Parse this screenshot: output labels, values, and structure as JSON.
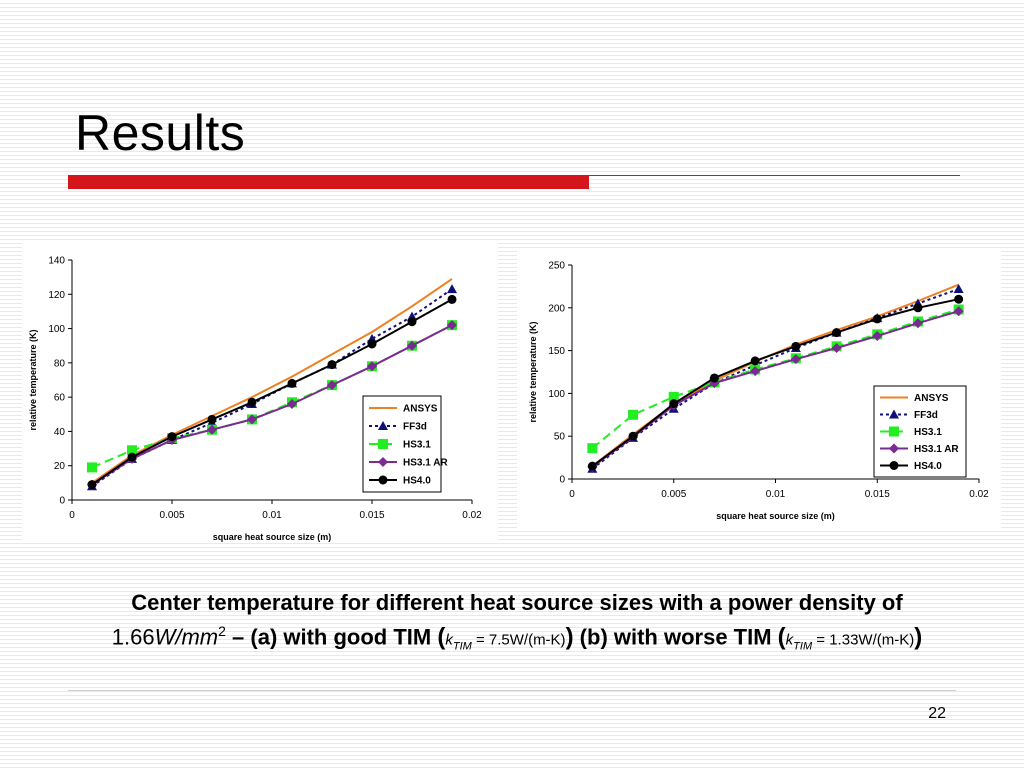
{
  "title": "Results",
  "caption": {
    "part1": "Center temperature for different heat source sizes with a power density of ",
    "density_value": "1.66",
    "density_unit": "W/mm",
    "density_exp": "2",
    "part2": " – (a) with good TIM ",
    "open_paren": "(",
    "k_symbol": "k",
    "k_sub": "TIM",
    "k_good": " = 7.5W/(m-K)",
    "close_paren": ")",
    "part3": " (b) with worse TIM ",
    "k_worse": " = 1.33W/(m-K)"
  },
  "page_number": "22",
  "colors": {
    "title_bar": "#d4151b",
    "ANSYS": "#f07f21",
    "FF3d": "#10107a",
    "HS3.1": "#22ee22",
    "HS3.1 AR": "#7a2a90",
    "HS4.0": "#000000"
  },
  "chart_data": [
    {
      "type": "line",
      "xlabel": "square heat source size (m)",
      "ylabel": "relative temperature (K)",
      "xlim": [
        0,
        0.02
      ],
      "ylim": [
        0,
        140
      ],
      "xticks": [
        "0",
        "0.005",
        "0.01",
        "0.015",
        "0.02"
      ],
      "yticks": [
        "0",
        "20",
        "40",
        "60",
        "80",
        "100",
        "120",
        "140"
      ],
      "legend": "right",
      "grid": false,
      "series": [
        {
          "name": "ANSYS",
          "style": "solid-line",
          "x": [
            0.001,
            0.003,
            0.005,
            0.007,
            0.009,
            0.011,
            0.013,
            0.015,
            0.017,
            0.019
          ],
          "y": [
            10,
            26,
            38,
            49,
            60,
            72,
            85,
            98,
            113,
            129
          ]
        },
        {
          "name": "FF3d",
          "style": "dotted-triangle",
          "x": [
            0.001,
            0.003,
            0.005,
            0.007,
            0.009,
            0.011,
            0.013,
            0.015,
            0.017,
            0.019
          ],
          "y": [
            8,
            24,
            35,
            45,
            56,
            68,
            79,
            94,
            107,
            123
          ]
        },
        {
          "name": "HS3.1",
          "style": "dashed-square",
          "x": [
            0.001,
            0.003,
            0.005,
            0.007,
            0.009,
            0.011,
            0.013,
            0.015,
            0.017,
            0.019
          ],
          "y": [
            19,
            29,
            36,
            41,
            47,
            57,
            67,
            78,
            90,
            102
          ]
        },
        {
          "name": "HS3.1 AR",
          "style": "solid-diamond",
          "x": [
            0.001,
            0.003,
            0.005,
            0.007,
            0.009,
            0.011,
            0.013,
            0.015,
            0.017,
            0.019
          ],
          "y": [
            9,
            24,
            35,
            41,
            47,
            56,
            67,
            78,
            90,
            102
          ]
        },
        {
          "name": "HS4.0",
          "style": "solid-circle",
          "x": [
            0.001,
            0.003,
            0.005,
            0.007,
            0.009,
            0.011,
            0.013,
            0.015,
            0.017,
            0.019
          ],
          "y": [
            9,
            25,
            37,
            47,
            57,
            68,
            79,
            91,
            104,
            117
          ]
        }
      ]
    },
    {
      "type": "line",
      "xlabel": "square heat source size (m)",
      "ylabel": "relative temperature (K)",
      "xlim": [
        0,
        0.02
      ],
      "ylim": [
        0,
        250
      ],
      "xticks": [
        "0",
        "0.005",
        "0.01",
        "0.015",
        "0.02"
      ],
      "yticks": [
        "0",
        "50",
        "100",
        "150",
        "200",
        "250"
      ],
      "legend": "right",
      "grid": false,
      "series": [
        {
          "name": "ANSYS",
          "style": "solid-line",
          "x": [
            0.001,
            0.003,
            0.005,
            0.007,
            0.009,
            0.011,
            0.013,
            0.015,
            0.017,
            0.019
          ],
          "y": [
            15,
            52,
            87,
            115,
            137,
            157,
            174,
            190,
            208,
            227
          ]
        },
        {
          "name": "FF3d",
          "style": "dotted-triangle",
          "x": [
            0.001,
            0.003,
            0.005,
            0.007,
            0.009,
            0.011,
            0.013,
            0.015,
            0.017,
            0.019
          ],
          "y": [
            12,
            48,
            82,
            112,
            133,
            153,
            171,
            188,
            205,
            222
          ]
        },
        {
          "name": "HS3.1",
          "style": "dashed-square",
          "x": [
            0.001,
            0.003,
            0.005,
            0.007,
            0.009,
            0.011,
            0.013,
            0.015,
            0.017,
            0.019
          ],
          "y": [
            36,
            75,
            96,
            113,
            128,
            141,
            155,
            169,
            184,
            198
          ]
        },
        {
          "name": "HS3.1 AR",
          "style": "solid-diamond",
          "x": [
            0.001,
            0.003,
            0.005,
            0.007,
            0.009,
            0.011,
            0.013,
            0.015,
            0.017,
            0.019
          ],
          "y": [
            14,
            49,
            86,
            112,
            126,
            140,
            153,
            167,
            182,
            196
          ]
        },
        {
          "name": "HS4.0",
          "style": "solid-circle",
          "x": [
            0.001,
            0.003,
            0.005,
            0.007,
            0.009,
            0.011,
            0.013,
            0.015,
            0.017,
            0.019
          ],
          "y": [
            15,
            50,
            88,
            118,
            138,
            155,
            171,
            187,
            200,
            210
          ]
        }
      ]
    }
  ]
}
